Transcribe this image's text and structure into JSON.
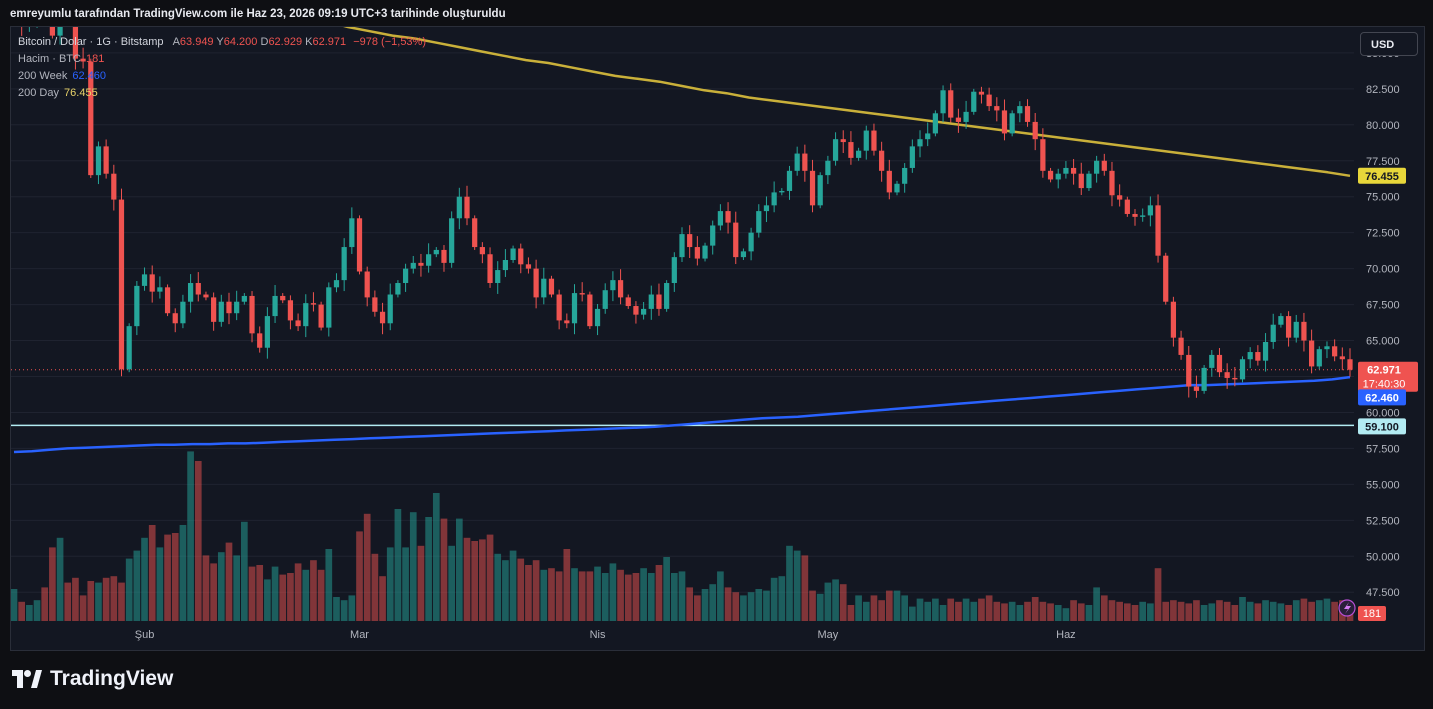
{
  "caption": "emreyumlu tarafından TradingView.com ile Haz 23, 2026 09:19 UTC+3 tarihinde oluşturuldu",
  "currency": "USD",
  "brand": "TradingView",
  "legend": {
    "symbol": "Bitcoin / Dolar · 1G · Bitstamp",
    "o_label": "A",
    "o": "63.949",
    "h_label": "Y",
    "h": "64.200",
    "l_label": "D",
    "l": "62.929",
    "c_label": "K",
    "c": "62.971",
    "change": "−978 (−1,53%)",
    "volume_label": "Hacim · BTC",
    "volume": "181",
    "ma200w_label": "200 Week",
    "ma200w": "62.460",
    "ma200d_label": "200 Day",
    "ma200d": "76.455"
  },
  "colors": {
    "up": "#26a69a",
    "down": "#ef5350",
    "ma200w": "#2962ff",
    "ma200d": "#c9b03a",
    "hline": "#b2ebf2",
    "bg": "#131722",
    "grid": "#1f2330"
  },
  "chart_data": {
    "type": "candlestick",
    "ylim": [
      45500,
      86800
    ],
    "y_ticks": [
      "47.500",
      "50.000",
      "52.500",
      "55.000",
      "57.500",
      "60.000",
      "62.500",
      "65.000",
      "67.500",
      "70.000",
      "72.500",
      "75.000",
      "77.500",
      "80.000",
      "82.500",
      "85.000"
    ],
    "x_ticks": [
      {
        "label": "Şub",
        "index": 17
      },
      {
        "label": "Mar",
        "index": 45
      },
      {
        "label": "Nis",
        "index": 76
      },
      {
        "label": "May",
        "index": 106
      },
      {
        "label": "Haz",
        "index": 137
      }
    ],
    "price_labels": {
      "last": "62.971",
      "countdown": "17:40:30",
      "ma200w": "62.460",
      "hline": "59.100",
      "ma200d": "76.455",
      "volume": "181"
    },
    "horizontal_line": 59100,
    "last_price": 62971,
    "closes": [
      87000,
      86800,
      87500,
      88000,
      87500,
      86200,
      88500,
      87200,
      84600,
      84400,
      76500,
      78500,
      76600,
      74800,
      63000,
      66000,
      68800,
      69600,
      68400,
      68700,
      66900,
      66200,
      67700,
      69000,
      68200,
      68000,
      66300,
      67700,
      66900,
      67700,
      68100,
      65500,
      64500,
      66700,
      68100,
      67800,
      66400,
      66000,
      67600,
      67500,
      65900,
      68700,
      69200,
      71500,
      73500,
      69800,
      68000,
      67000,
      66200,
      68200,
      69000,
      70000,
      70400,
      70200,
      71000,
      71300,
      70400,
      73500,
      75000,
      73500,
      71500,
      71000,
      69000,
      69900,
      70600,
      71400,
      70300,
      70000,
      68000,
      69300,
      68200,
      66400,
      66200,
      68300,
      68200,
      66000,
      67200,
      68500,
      69200,
      68000,
      67400,
      66800,
      67200,
      68200,
      67200,
      69000,
      70800,
      72400,
      71500,
      70700,
      71600,
      73000,
      74000,
      73200,
      70800,
      71200,
      72500,
      74000,
      74400,
      75300,
      75400,
      76800,
      78000,
      76800,
      74400,
      76500,
      77500,
      79000,
      78800,
      77700,
      78200,
      79600,
      78200,
      76800,
      75300,
      75900,
      77000,
      78500,
      79000,
      79400,
      80800,
      82400,
      80500,
      80200,
      80900,
      82300,
      82100,
      81300,
      81000,
      79400,
      80800,
      81300,
      80200,
      79000,
      76800,
      76200,
      76600,
      77000,
      76600,
      75600,
      76600,
      77500,
      76800,
      75100,
      74800,
      73800,
      73600,
      73700,
      74400,
      70900,
      67700,
      65200,
      64000,
      61800,
      61500,
      63100,
      64000,
      62800,
      62400,
      62300,
      63700,
      64200,
      63600,
      64900,
      66100,
      66700,
      65200,
      66300,
      65000,
      63200,
      64400,
      64600,
      63900,
      63700,
      62971
    ],
    "volumes": [
      2.0,
      1.2,
      1.0,
      1.3,
      2.1,
      4.6,
      5.2,
      2.4,
      2.7,
      1.6,
      2.5,
      2.4,
      2.7,
      2.8,
      2.4,
      3.9,
      4.4,
      5.2,
      6.0,
      4.6,
      5.4,
      5.5,
      6.0,
      10.6,
      10.0,
      4.1,
      3.6,
      4.3,
      4.9,
      4.1,
      6.2,
      3.4,
      3.5,
      2.6,
      3.4,
      2.9,
      3.0,
      3.6,
      3.2,
      3.8,
      3.2,
      4.5,
      1.5,
      1.3,
      1.6,
      5.6,
      6.7,
      4.2,
      2.8,
      4.6,
      7.0,
      4.6,
      6.8,
      4.7,
      6.5,
      8.0,
      6.4,
      4.7,
      6.4,
      5.2,
      5.0,
      5.1,
      5.4,
      4.2,
      3.8,
      4.4,
      3.9,
      3.5,
      3.8,
      3.2,
      3.3,
      3.1,
      4.5,
      3.3,
      3.1,
      3.1,
      3.4,
      3.0,
      3.6,
      3.2,
      2.9,
      3.0,
      3.3,
      3.0,
      3.5,
      4.0,
      3.0,
      3.1,
      2.1,
      1.6,
      2.0,
      2.3,
      3.1,
      2.1,
      1.8,
      1.6,
      1.8,
      2.0,
      1.9,
      2.7,
      2.8,
      4.7,
      4.4,
      4.1,
      1.9,
      1.7,
      2.4,
      2.6,
      2.3,
      1.0,
      1.6,
      1.2,
      1.6,
      1.3,
      1.9,
      1.9,
      1.6,
      0.9,
      1.4,
      1.2,
      1.4,
      1.0,
      1.4,
      1.2,
      1.4,
      1.2,
      1.4,
      1.6,
      1.2,
      1.1,
      1.2,
      1.0,
      1.2,
      1.5,
      1.2,
      1.1,
      1.0,
      0.8,
      1.3,
      1.1,
      1.0,
      2.1,
      1.6,
      1.3,
      1.2,
      1.1,
      1.0,
      1.2,
      1.1,
      3.3,
      1.2,
      1.3,
      1.2,
      1.1,
      1.3,
      1.0,
      1.1,
      1.3,
      1.2,
      1.0,
      1.5,
      1.2,
      1.1,
      1.3,
      1.2,
      1.1,
      1.0,
      1.3,
      1.4,
      1.2,
      1.3,
      1.4,
      1.2,
      1.3,
      1.0,
      1.2,
      1.1,
      1.0,
      0.9,
      0.8
    ],
    "ma200d": [
      95000,
      94300,
      93600,
      92900,
      92300,
      91700,
      91100,
      90500,
      90000,
      89500,
      89000,
      88500,
      88000,
      87600,
      87200,
      86800,
      86500,
      86200,
      86000,
      85700,
      85400,
      85100,
      84800,
      84500,
      84300,
      84000,
      83700,
      83400,
      83200,
      83000,
      82700,
      82400,
      82200,
      81900,
      81700,
      81500,
      81300,
      81100,
      80900,
      80700,
      80500,
      80300,
      80100,
      79900,
      79700,
      79500,
      79300,
      79100,
      78900,
      78700,
      78500,
      78300,
      78100,
      77900,
      77700,
      77500,
      77300,
      77100,
      76900,
      76700,
      76455
    ],
    "ma200w": [
      57250,
      57300,
      57400,
      57500,
      57550,
      57600,
      57650,
      57700,
      57750,
      57750,
      57800,
      57800,
      57850,
      57850,
      57900,
      57950,
      58000,
      58050,
      58100,
      58150,
      58200,
      58250,
      58300,
      58350,
      58400,
      58450,
      58500,
      58550,
      58600,
      58650,
      58700,
      58750,
      58800,
      58850,
      58900,
      58950,
      59000,
      59100,
      59200,
      59300,
      59400,
      59500,
      59600,
      59650,
      59700,
      59800,
      59900,
      60000,
      60100,
      60200,
      60300,
      60400,
      60500,
      60600,
      60700,
      60800,
      60900,
      61000,
      61100,
      61200,
      61300,
      61400,
      61500,
      61600,
      61700,
      61800,
      61900,
      61900,
      61950,
      62000,
      62050,
      62100,
      62150,
      62200,
      62300,
      62460
    ]
  }
}
